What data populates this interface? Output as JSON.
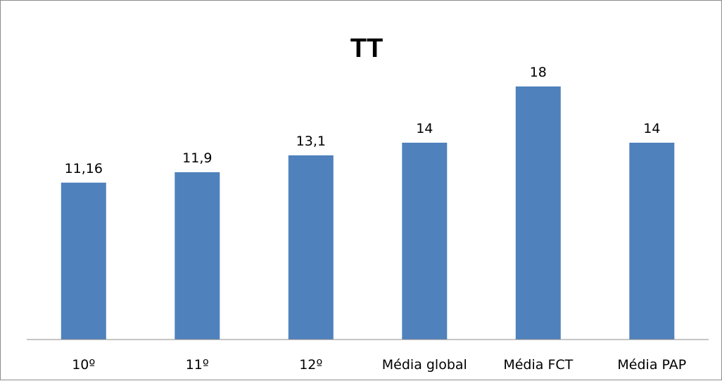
{
  "chart_data": {
    "type": "bar",
    "title": "TT",
    "categories": [
      "10º",
      "11º",
      "12º",
      "Média global",
      "Média FCT",
      "Média PAP"
    ],
    "values": [
      11.16,
      11.9,
      13.1,
      14,
      18,
      14
    ],
    "data_labels": [
      "11,16",
      "11,9",
      "13,1",
      "14",
      "18",
      "14"
    ],
    "xlabel": "",
    "ylabel": "",
    "ylim": [
      0,
      20
    ],
    "grid": false,
    "legend": "none",
    "bar_color": "#4f81bd",
    "axis_color": "#8c8c8c"
  }
}
